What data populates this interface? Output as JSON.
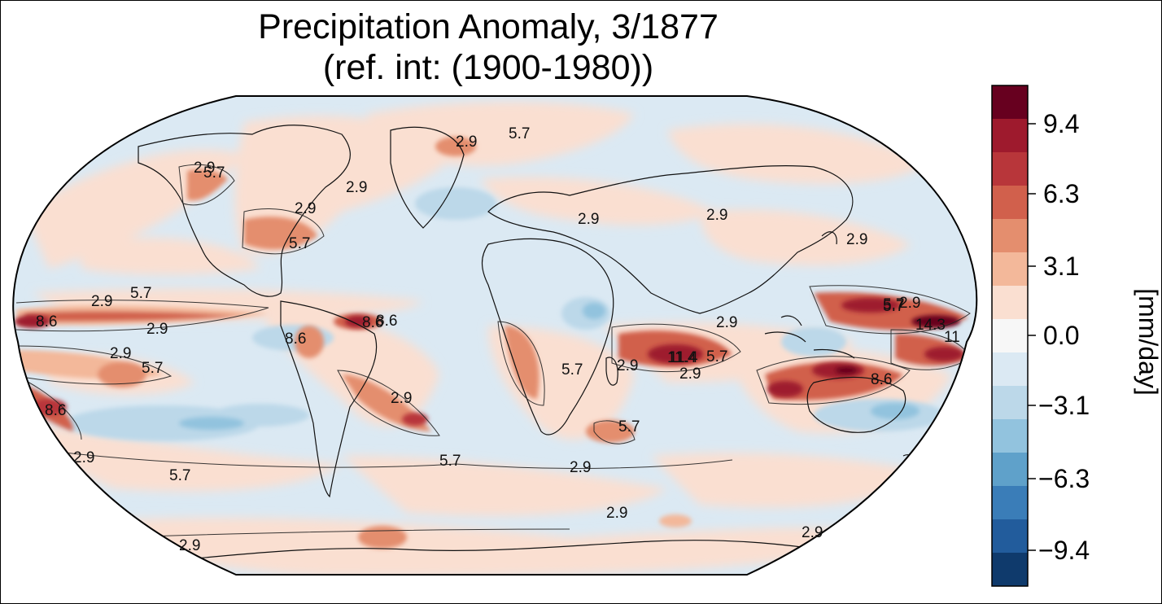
{
  "title": {
    "line1": "Precipitation Anomaly, 3/1877",
    "line2": "(ref. int: (1900-1980))"
  },
  "colorbar": {
    "unit_label": "[mm/day]",
    "ticks": [
      "9.4",
      "6.3",
      "3.1",
      "0.0",
      "−3.1",
      "−6.3",
      "−9.4"
    ],
    "bands": [
      "#67001f",
      "#9e1a2d",
      "#b8363a",
      "#d1604c",
      "#e48e6e",
      "#f3b89a",
      "#fadfd1",
      "#f7f7f7",
      "#dbe9f3",
      "#bcd8e9",
      "#92c3de",
      "#5fa1ca",
      "#3a7db8",
      "#225c9c",
      "#0f3a6c"
    ]
  },
  "contour_labels": [
    "2.9",
    "5.7",
    "2.9",
    "5.7",
    "2.9",
    "2.9",
    "5.7",
    "2.9",
    "8.6",
    "2.9",
    "5.7",
    "8.6",
    "8.6",
    "8.6",
    "8.6",
    "2.9",
    "5.7",
    "2.9",
    "5.7",
    "2.9",
    "2.9",
    "2.9",
    "2.9",
    "11.4",
    "5.7",
    "14.3",
    "11",
    "5.7",
    "2.9",
    "11.4",
    "5.7",
    "2.9",
    "8.6",
    "5.7",
    "5.7",
    "2.9",
    "2.9",
    "2.9",
    "2.9",
    "5.7",
    "2.9",
    "2.9"
  ],
  "colors": {
    "ocean_neutral": "#dbe9f3",
    "positive_light": "#fadfd1",
    "positive_mid": "#e48e6e",
    "positive_strong": "#9e1a2d",
    "negative_mid": "#92c3de",
    "negative_strong": "#3a7db8"
  }
}
